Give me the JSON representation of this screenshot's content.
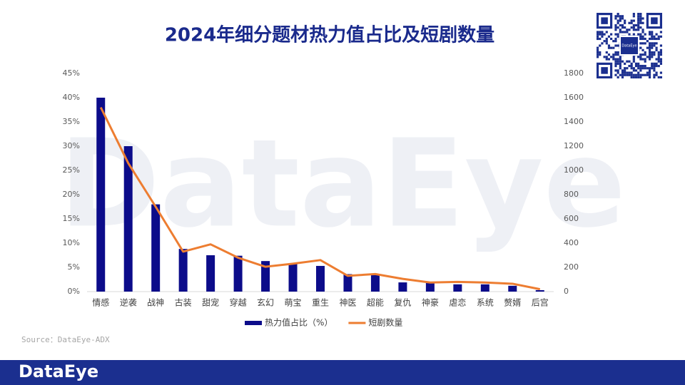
{
  "chart_data": {
    "type": "bar-line",
    "title": "2024年细分题材热力值占比及短剧数量",
    "categories": [
      "情感",
      "逆袭",
      "战神",
      "古装",
      "甜宠",
      "穿越",
      "玄幻",
      "萌宝",
      "重生",
      "神医",
      "超能",
      "复仇",
      "神豪",
      "虐恋",
      "系统",
      "赘婿",
      "后宫"
    ],
    "series": [
      {
        "name": "热力值占比（%）",
        "type": "bar",
        "color": "#0c0c8a",
        "values": [
          40,
          30,
          18,
          8.8,
          7.5,
          7.4,
          6.3,
          5.8,
          5.3,
          3.6,
          3.5,
          1.9,
          1.8,
          1.5,
          1.5,
          1.2,
          0.3
        ]
      },
      {
        "name": "短剧数量",
        "type": "line",
        "axis": "y2",
        "color": "#ed7d31",
        "values": [
          1520,
          1060,
          700,
          330,
          390,
          280,
          205,
          230,
          260,
          130,
          145,
          105,
          75,
          80,
          75,
          65,
          20
        ]
      }
    ],
    "ylim": [
      0,
      45
    ],
    "yticks": [
      {
        "value": 0,
        "label": "0%"
      },
      {
        "value": 5,
        "label": "5%"
      },
      {
        "value": 10,
        "label": "10%"
      },
      {
        "value": 15,
        "label": "15%"
      },
      {
        "value": 20,
        "label": "20%"
      },
      {
        "value": 25,
        "label": "25%"
      },
      {
        "value": 30,
        "label": "30%"
      },
      {
        "value": 35,
        "label": "35%"
      },
      {
        "value": 40,
        "label": "40%"
      },
      {
        "value": 45,
        "label": "45%"
      }
    ],
    "y2lim": [
      0,
      1800
    ],
    "y2ticks": [
      0,
      200,
      400,
      600,
      800,
      1000,
      1200,
      1400,
      1600,
      1800
    ],
    "grid": false,
    "legend": "bottom",
    "source": "Source：DataEye-ADX",
    "watermark": "DataEye",
    "footer_logo": "DataEye",
    "qr_label": "DataEye"
  }
}
